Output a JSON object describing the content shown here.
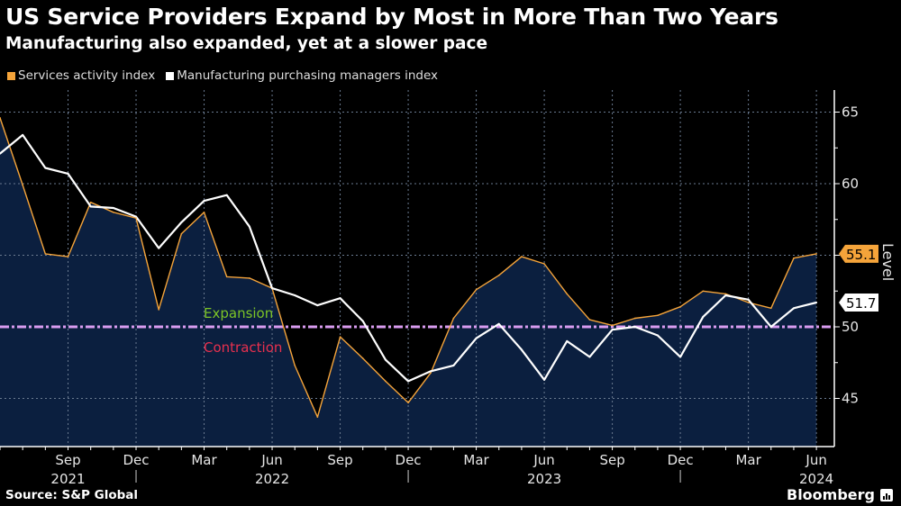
{
  "header": {
    "title": "US Service Providers Expand by Most in More Than Two Years",
    "subtitle": "Manufacturing also expanded, yet at a slower pace"
  },
  "footer": {
    "source": "Source: S&P Global",
    "brand": "Bloomberg"
  },
  "chart_data": {
    "type": "line",
    "title": "US Service Providers Expand by Most in More Than Two Years",
    "subtitle": "Manufacturing also expanded, yet at a slower pace",
    "xlabel": "",
    "ylabel": "Level",
    "ylim": [
      42.5,
      66.5
    ],
    "yticks": [
      45,
      50,
      55,
      60,
      65
    ],
    "grid": true,
    "legend": "top-left",
    "x": [
      "Jun 2021",
      "Jul 2021",
      "Aug 2021",
      "Sep 2021",
      "Oct 2021",
      "Nov 2021",
      "Dec 2021",
      "Jan 2022",
      "Feb 2022",
      "Mar 2022",
      "Apr 2022",
      "May 2022",
      "Jun 2022",
      "Jul 2022",
      "Aug 2022",
      "Sep 2022",
      "Oct 2022",
      "Nov 2022",
      "Dec 2022",
      "Jan 2023",
      "Feb 2023",
      "Mar 2023",
      "Apr 2023",
      "May 2023",
      "Jun 2023",
      "Jul 2023",
      "Aug 2023",
      "Sep 2023",
      "Oct 2023",
      "Nov 2023",
      "Dec 2023",
      "Jan 2024",
      "Feb 2024",
      "Mar 2024",
      "Apr 2024",
      "May 2024",
      "Jun 2024"
    ],
    "xticks": [
      {
        "index": 3,
        "month": "Sep",
        "year": "2021"
      },
      {
        "index": 6,
        "month": "Dec",
        "year": ""
      },
      {
        "index": 9,
        "month": "Mar",
        "year": ""
      },
      {
        "index": 12,
        "month": "Jun",
        "year": "2022"
      },
      {
        "index": 15,
        "month": "Sep",
        "year": ""
      },
      {
        "index": 18,
        "month": "Dec",
        "year": ""
      },
      {
        "index": 21,
        "month": "Mar",
        "year": ""
      },
      {
        "index": 24,
        "month": "Jun",
        "year": "2023"
      },
      {
        "index": 27,
        "month": "Sep",
        "year": ""
      },
      {
        "index": 30,
        "month": "Dec",
        "year": ""
      },
      {
        "index": 33,
        "month": "Mar",
        "year": ""
      },
      {
        "index": 36,
        "month": "Jun",
        "year": "2024"
      }
    ],
    "year_separators": [
      6.5,
      18.5,
      30.5
    ],
    "series": [
      {
        "name": "Services activity index",
        "color": "#f5a43a",
        "area_fill": "#0b1f3f",
        "last_value_label": "55.1",
        "values": [
          64.6,
          59.9,
          55.1,
          54.9,
          58.7,
          58.0,
          57.6,
          51.2,
          56.5,
          58.0,
          53.5,
          53.4,
          52.7,
          47.3,
          43.7,
          49.3,
          47.8,
          46.2,
          44.7,
          46.8,
          50.6,
          52.6,
          53.6,
          54.9,
          54.4,
          52.3,
          50.5,
          50.1,
          50.6,
          50.8,
          51.4,
          52.5,
          52.3,
          51.7,
          51.3,
          54.8,
          55.1
        ]
      },
      {
        "name": "Manufacturing purchasing managers index",
        "color": "#ffffff",
        "last_value_label": "51.7",
        "values": [
          62.1,
          63.4,
          61.1,
          60.7,
          58.4,
          58.3,
          57.7,
          55.5,
          57.3,
          58.8,
          59.2,
          57.0,
          52.7,
          52.2,
          51.5,
          52.0,
          50.4,
          47.7,
          46.2,
          46.9,
          47.3,
          49.2,
          50.2,
          48.4,
          46.3,
          49.0,
          47.9,
          49.8,
          50.0,
          49.4,
          47.9,
          50.7,
          52.2,
          51.9,
          50.0,
          51.3,
          51.7
        ]
      }
    ],
    "reference_line": {
      "value": 50,
      "color": "#d99cf0"
    },
    "annotations": [
      {
        "text": "Expansion",
        "color": "#7cc427"
      },
      {
        "text": "Contraction",
        "color": "#e8304e"
      }
    ]
  }
}
